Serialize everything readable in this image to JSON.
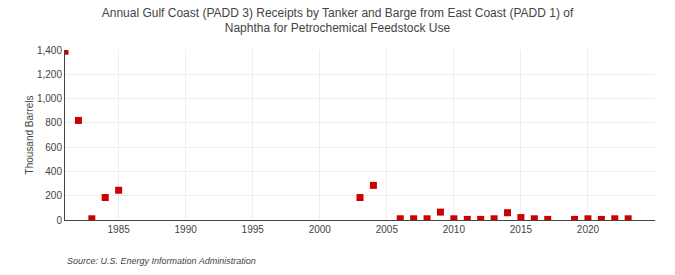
{
  "chart_data": {
    "type": "scatter",
    "title": "Annual Gulf Coast (PADD 3) Receipts by Tanker and Barge from East Coast (PADD 1) of\nNaphtha for Petrochemical Feedstock Use",
    "ylabel": "Thousand Barrels",
    "source": "Source: U.S. Energy Information Administration",
    "color": "#cc0000",
    "marker": "square",
    "grid": true,
    "xlim": [
      1981,
      2025
    ],
    "ylim": [
      0,
      1400
    ],
    "xticks": [
      1985,
      1990,
      1995,
      2000,
      2005,
      2010,
      2015,
      2020
    ],
    "yticks": [
      0,
      200,
      400,
      600,
      800,
      {
        "value": 1000,
        "label": "1,000"
      },
      {
        "value": 1200,
        "label": "1,200"
      },
      {
        "value": 1400,
        "label": "1,400"
      }
    ],
    "x": [
      1981,
      1982,
      1983,
      1984,
      1985,
      2003,
      2004,
      2006,
      2007,
      2008,
      2009,
      2010,
      2011,
      2012,
      2013,
      2014,
      2015,
      2016,
      2017,
      2019,
      2020,
      2021,
      2022,
      2023
    ],
    "values": [
      1390,
      820,
      10,
      185,
      245,
      185,
      285,
      10,
      10,
      10,
      65,
      10,
      5,
      5,
      10,
      60,
      20,
      10,
      5,
      5,
      10,
      5,
      10,
      10
    ]
  }
}
